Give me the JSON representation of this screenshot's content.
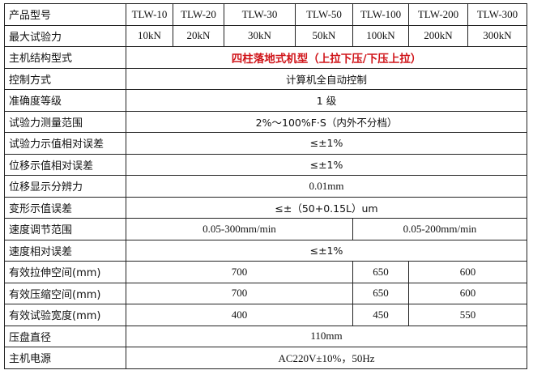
{
  "rows": {
    "model": {
      "label": "产品型号",
      "values": [
        "TLW-10",
        "TLW-20",
        "TLW-30",
        "TLW-50",
        "TLW-100",
        "TLW-200",
        "TLW-300"
      ]
    },
    "max_force": {
      "label": "最大试验力",
      "values": [
        "10kN",
        "20kN",
        "30kN",
        "50kN",
        "100kN",
        "200kN",
        "300kN"
      ]
    },
    "structure": {
      "label": "主机结构型式",
      "value": "四柱落地式机型（上拉下压/下压上拉）"
    },
    "control": {
      "label": "控制方式",
      "value": "计算机全自动控制"
    },
    "accuracy": {
      "label": "准确度等级",
      "value": "1 级"
    },
    "force_range": {
      "label": "试验力测量范围",
      "value": "2%～100%F·S（内外不分档）"
    },
    "force_error": {
      "label": "试验力示值相对误差",
      "value": "≤±1%"
    },
    "disp_error": {
      "label": "位移示值相对误差",
      "value": "≤±1%"
    },
    "disp_resolution": {
      "label": "位移显示分辨力",
      "value": "0.01mm"
    },
    "deform_error": {
      "label": "变形示值误差",
      "value": "≤±（50+0.15L）um"
    },
    "speed_range": {
      "label": "速度调节范围",
      "values": [
        "0.05-300mm/min",
        "0.05-200mm/min"
      ]
    },
    "speed_error": {
      "label": "速度相对误差",
      "value": "≤±1%"
    },
    "tensile_space": {
      "label": "有效拉伸空间(mm)",
      "values": [
        "700",
        "650",
        "600"
      ]
    },
    "compress_space": {
      "label": "有效压缩空间(mm)",
      "values": [
        "700",
        "650",
        "600"
      ]
    },
    "test_width": {
      "label": "有效试验宽度(mm)",
      "values": [
        "400",
        "450",
        "550"
      ]
    },
    "platen": {
      "label": "压盘直径",
      "value": "110mm"
    },
    "power": {
      "label": "主机电源",
      "value": "AC220V±10%，50Hz"
    }
  },
  "colors": {
    "highlight": "#d0151a"
  }
}
